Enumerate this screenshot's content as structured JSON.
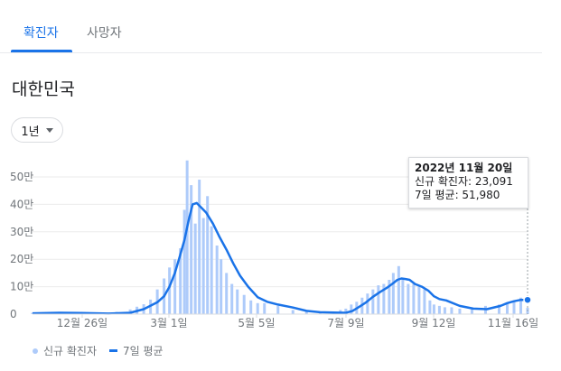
{
  "tabs": [
    {
      "label": "확진자",
      "active": true
    },
    {
      "label": "사망자",
      "active": false
    }
  ],
  "region": "대한민국",
  "range": {
    "label": "1년"
  },
  "chart_data": {
    "type": "bar",
    "x_range": [
      "2021-11-20",
      "2022-11-20"
    ],
    "x_ticks": [
      "12월 26일",
      "3월 1일",
      "5월 5일",
      "7월 9일",
      "9월 12일",
      "11월 16일"
    ],
    "y_ticks": [
      "0",
      "10만",
      "20만",
      "30만",
      "40만",
      "50만"
    ],
    "ylim": [
      0,
      550000
    ],
    "series": [
      {
        "name": "신규 확진자",
        "color": "#aecbfa",
        "x": [
          "2021-11-20",
          "2021-12-01",
          "2021-12-11",
          "2021-12-21",
          "2022-01-01",
          "2022-01-11",
          "2022-01-21",
          "2022-01-31",
          "2022-02-05",
          "2022-02-10",
          "2022-02-15",
          "2022-02-20",
          "2022-02-25",
          "2022-03-01",
          "2022-03-05",
          "2022-03-09",
          "2022-03-12",
          "2022-03-14",
          "2022-03-17",
          "2022-03-20",
          "2022-03-23",
          "2022-03-26",
          "2022-03-29",
          "2022-04-01",
          "2022-04-05",
          "2022-04-08",
          "2022-04-12",
          "2022-04-16",
          "2022-04-20",
          "2022-04-25",
          "2022-04-30",
          "2022-05-05",
          "2022-05-10",
          "2022-05-20",
          "2022-05-31",
          "2022-06-10",
          "2022-06-20",
          "2022-06-30",
          "2022-07-05",
          "2022-07-09",
          "2022-07-13",
          "2022-07-17",
          "2022-07-21",
          "2022-07-25",
          "2022-07-29",
          "2022-08-02",
          "2022-08-06",
          "2022-08-10",
          "2022-08-13",
          "2022-08-17",
          "2022-08-20",
          "2022-08-24",
          "2022-08-28",
          "2022-09-01",
          "2022-09-05",
          "2022-09-09",
          "2022-09-12",
          "2022-09-16",
          "2022-09-20",
          "2022-09-25",
          "2022-10-01",
          "2022-10-10",
          "2022-10-20",
          "2022-10-30",
          "2022-11-05",
          "2022-11-10",
          "2022-11-15",
          "2022-11-20"
        ],
        "values": [
          5000,
          5000,
          7000,
          6000,
          4000,
          4000,
          8000,
          17000,
          27000,
          36000,
          53000,
          90000,
          130000,
          170000,
          200000,
          240000,
          380000,
          560000,
          470000,
          330000,
          490000,
          350000,
          430000,
          320000,
          250000,
          200000,
          150000,
          110000,
          90000,
          70000,
          50000,
          40000,
          40000,
          30000,
          15000,
          10000,
          9000,
          10000,
          15000,
          20000,
          35000,
          45000,
          60000,
          75000,
          90000,
          105000,
          110000,
          125000,
          150000,
          175000,
          130000,
          110000,
          110000,
          100000,
          90000,
          50000,
          35000,
          30000,
          25000,
          25000,
          20000,
          20000,
          30000,
          35000,
          40000,
          45000,
          60000,
          23091
        ]
      },
      {
        "name": "7일 평균",
        "color": "#1a73e8",
        "x": [
          "2021-11-20",
          "2021-12-10",
          "2021-12-26",
          "2022-01-15",
          "2022-01-31",
          "2022-02-10",
          "2022-02-20",
          "2022-02-25",
          "2022-03-01",
          "2022-03-05",
          "2022-03-08",
          "2022-03-12",
          "2022-03-15",
          "2022-03-18",
          "2022-03-21",
          "2022-03-24",
          "2022-03-28",
          "2022-04-02",
          "2022-04-07",
          "2022-04-12",
          "2022-04-17",
          "2022-04-22",
          "2022-04-28",
          "2022-05-05",
          "2022-05-12",
          "2022-05-20",
          "2022-05-31",
          "2022-06-10",
          "2022-06-20",
          "2022-06-30",
          "2022-07-09",
          "2022-07-14",
          "2022-07-19",
          "2022-07-24",
          "2022-07-29",
          "2022-08-03",
          "2022-08-08",
          "2022-08-13",
          "2022-08-16",
          "2022-08-19",
          "2022-08-22",
          "2022-08-25",
          "2022-08-29",
          "2022-09-03",
          "2022-09-08",
          "2022-09-12",
          "2022-09-16",
          "2022-09-21",
          "2022-10-01",
          "2022-10-11",
          "2022-10-21",
          "2022-10-31",
          "2022-11-05",
          "2022-11-10",
          "2022-11-15",
          "2022-11-20"
        ],
        "values": [
          3000,
          5000,
          4000,
          2000,
          5000,
          18000,
          43000,
          65000,
          100000,
          150000,
          200000,
          270000,
          340000,
          400000,
          405000,
          390000,
          370000,
          330000,
          280000,
          235000,
          185000,
          140000,
          100000,
          62000,
          45000,
          35000,
          24000,
          12000,
          7000,
          6000,
          5000,
          12000,
          27000,
          43000,
          63000,
          80000,
          95000,
          113000,
          125000,
          130000,
          128000,
          125000,
          110000,
          100000,
          85000,
          65000,
          55000,
          50000,
          30000,
          20000,
          18000,
          30000,
          40000,
          47000,
          52000,
          51980
        ]
      }
    ]
  },
  "tooltip": {
    "date": "2022년 11월 20일",
    "new_cases": "신규 확진자: 23,091",
    "avg": "7일 평균: 51,980"
  },
  "legend": {
    "bars_label": "신규 확진자",
    "line_label": "7일 평균"
  }
}
